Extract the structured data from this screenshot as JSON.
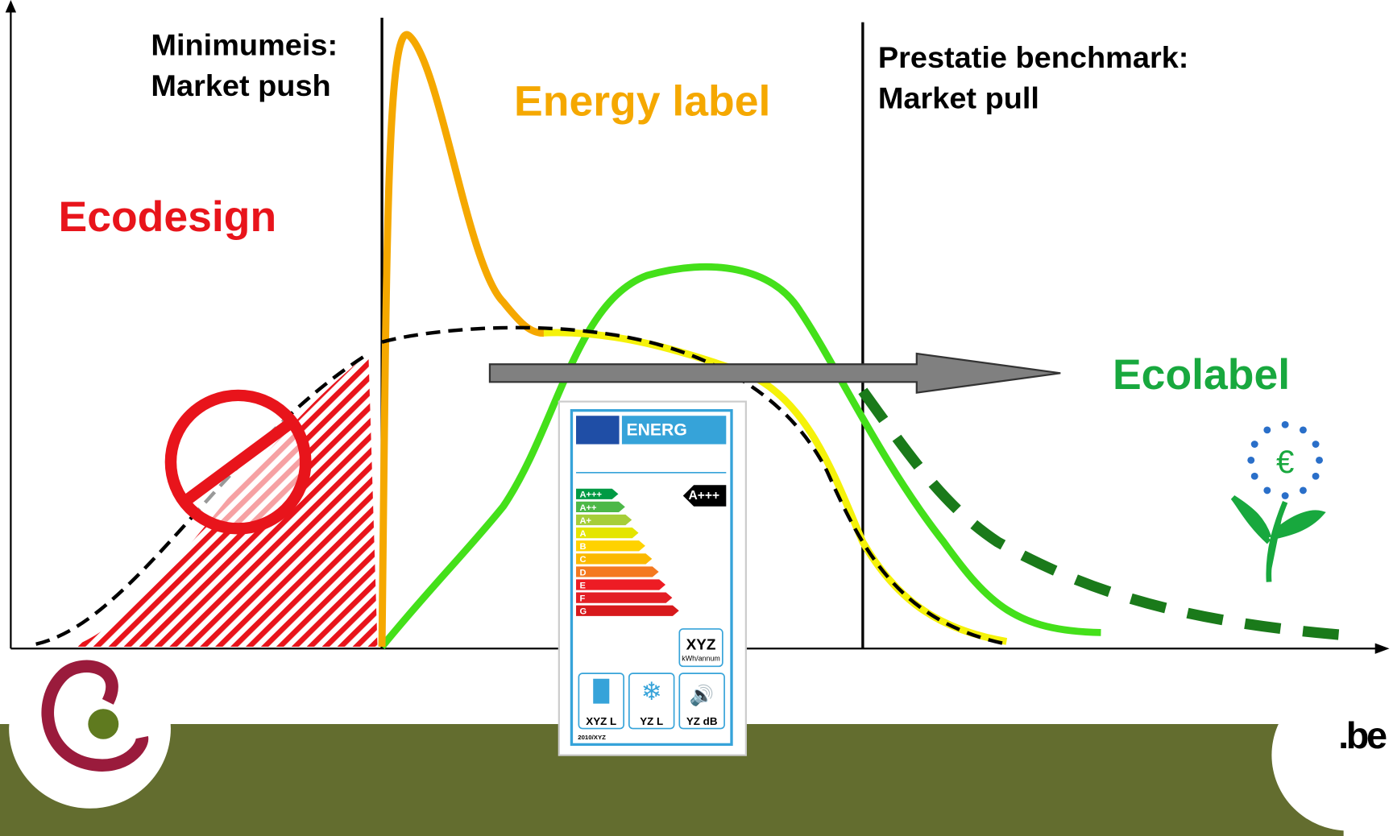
{
  "left_zone": {
    "title": "Ecodesign",
    "caption": [
      "Minimumeis:",
      "Market push"
    ]
  },
  "middle_zone": {
    "title": "Energy label"
  },
  "right_zone": {
    "title": "Ecolabel",
    "caption": [
      "Prestatie benchmark:",
      "Market pull"
    ]
  },
  "energy_label_card": {
    "header": "ENERG",
    "classes": [
      "A+++",
      "A++",
      "A+",
      "A",
      "B",
      "C",
      "D",
      "E",
      "F",
      "G"
    ],
    "rating": "A+++",
    "consumption": "XYZ",
    "consumption_unit": "kWh/annum",
    "icons": [
      "XYZ L",
      "YZ L",
      "YZ dB"
    ],
    "footer": "2010/XYZ"
  },
  "footer": {
    "domain": ".be"
  }
}
